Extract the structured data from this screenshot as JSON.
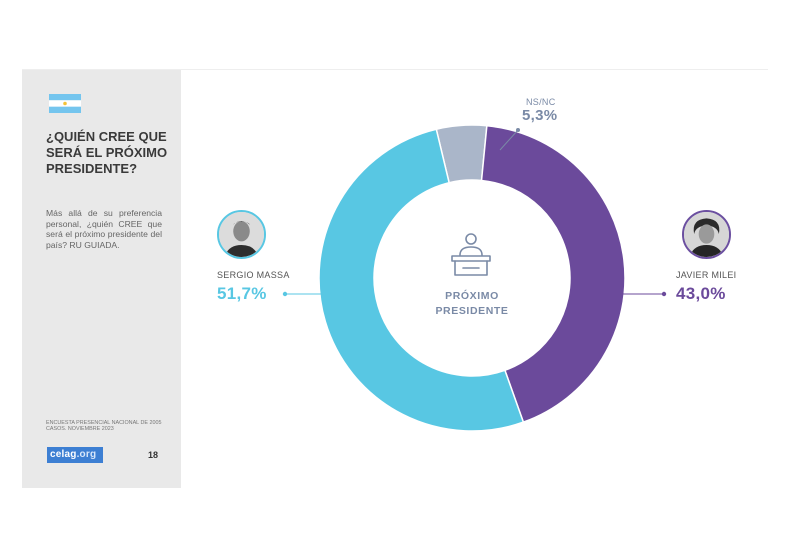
{
  "colors": {
    "massa": "#58c7e3",
    "milei": "#6b4a9b",
    "nsnc": "#aab6c9",
    "center_text": "#7a8aa6",
    "sidebar_bg": "#e9e9e9",
    "logo_bg": "#3d7fd3"
  },
  "sidebar": {
    "flag_icon": "argentina-flag-icon",
    "title": "¿QUIÉN CREE QUE SERÁ EL PRÓXIMO PRESIDENTE?",
    "subtitle": "Más allá de su preferencia personal, ¿quién CREE que será el próximo presidente del país? RU GUIADA.",
    "source": "ENCUESTA PRESENCIAL NACIONAL DE 2005 CASOS. NOVIEMBRE 2023",
    "logo_text": "celag",
    "logo_domain": ".org",
    "page_number": "18"
  },
  "chart_data": {
    "type": "pie",
    "style": "donut",
    "center_label_line1": "PRÓXIMO",
    "center_label_line2": "PRESIDENTE",
    "center_icon": "podium-speaker-icon",
    "slices": [
      {
        "name": "SERGIO MASSA",
        "value": 51.7,
        "label": "51,7%",
        "color": "#58c7e3"
      },
      {
        "name": "JAVIER MILEI",
        "value": 43.0,
        "label": "43,0%",
        "color": "#6b4a9b"
      },
      {
        "name": "NS/NC",
        "value": 5.3,
        "label": "5,3%",
        "color": "#aab6c9"
      }
    ]
  }
}
